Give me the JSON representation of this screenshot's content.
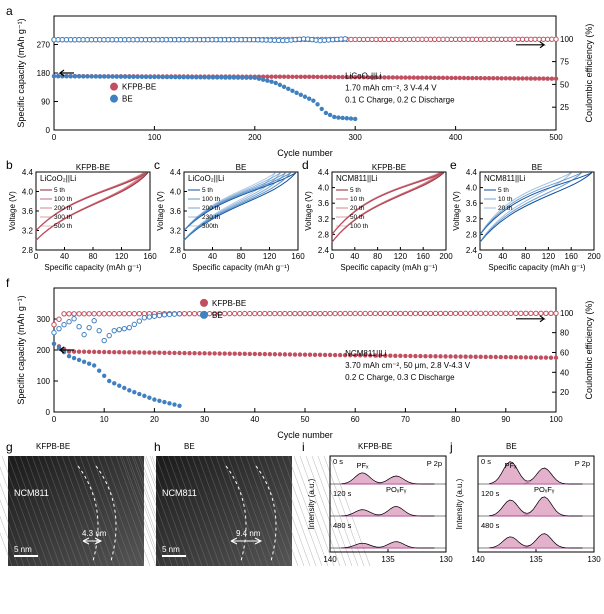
{
  "colors": {
    "kfpbSolid": "#c05060",
    "beSolid": "#4080c0",
    "kfpbOpen": "#c05060",
    "beOpen": "#4080c0",
    "grid": "#000000",
    "bg": "#ffffff",
    "xpsFill": "#d890b8"
  },
  "panelA": {
    "label": "a",
    "ylabelLeft": "Specific capacity (mAh g⁻¹)",
    "ylabelRight": "Coulombic efficiency (%)",
    "xlabel": "Cycle number",
    "xlim": [
      0,
      500
    ],
    "xtickStep": 100,
    "yLeftLim": [
      0,
      360
    ],
    "yLeftTicks": [
      0,
      90,
      180,
      270
    ],
    "yRightLim": [
      0,
      125
    ],
    "yRightTicks": [
      25,
      50,
      75,
      100
    ],
    "legend": [
      "KFPB-BE",
      "BE"
    ],
    "box": [
      "LiCoO₂||Li",
      "1.70 mAh cm⁻², 3 V-4.4 V",
      "0.1 C Charge, 0.2 C Discharge"
    ],
    "kfpbCap": [
      [
        0,
        170
      ],
      [
        250,
        168
      ],
      [
        500,
        162
      ]
    ],
    "beCap": [
      [
        0,
        170
      ],
      [
        200,
        165
      ],
      [
        220,
        150
      ],
      [
        240,
        120
      ],
      [
        260,
        90
      ],
      [
        270,
        55
      ],
      [
        280,
        40
      ],
      [
        300,
        35
      ]
    ],
    "kfpbCE": [
      [
        0,
        99
      ],
      [
        500,
        99.5
      ]
    ],
    "beCE": [
      [
        0,
        99
      ],
      [
        200,
        99
      ],
      [
        230,
        98
      ],
      [
        250,
        100
      ],
      [
        265,
        98
      ],
      [
        290,
        100
      ]
    ]
  },
  "panelBCDE": [
    {
      "label": "b",
      "title": "KFPB-BE",
      "sub": "LiCoO₂||Li",
      "color": "#c05060",
      "dark": "#902030",
      "xlim": [
        0,
        160
      ],
      "xlabel": "Specific capacity (mAh g⁻¹)",
      "ylabel": "Voltage (V)",
      "ylim": [
        2.8,
        4.4
      ],
      "yticks": [
        2.8,
        3.2,
        3.6,
        4.0,
        4.4
      ],
      "cycles": [
        "5 th",
        "100 th",
        "200 th",
        "300 th",
        "500 th"
      ]
    },
    {
      "label": "c",
      "title": "BE",
      "sub": "LiCoO₂||Li",
      "color": "#4080c0",
      "dark": "#1050a0",
      "xlim": [
        0,
        160
      ],
      "xlabel": "Specific capacity (mAh g⁻¹)",
      "ylabel": "Voltage (V)",
      "ylim": [
        2.8,
        4.4
      ],
      "yticks": [
        2.8,
        3.2,
        3.6,
        4.0,
        4.4
      ],
      "cycles": [
        "5 th",
        "100 th",
        "200 th",
        "230 th",
        "300th"
      ]
    },
    {
      "label": "d",
      "title": "KFPB-BE",
      "sub": "NCM811||Li",
      "color": "#c05060",
      "dark": "#902030",
      "xlim": [
        0,
        200
      ],
      "xlabel": "Specific capacity (mAh g⁻¹)",
      "ylabel": "Voltage (V)",
      "ylim": [
        2.4,
        4.4
      ],
      "yticks": [
        2.4,
        2.8,
        3.2,
        3.6,
        4.0,
        4.4
      ],
      "cycles": [
        "5 th",
        "10 th",
        "20 th",
        "50 th",
        "100 th"
      ]
    },
    {
      "label": "e",
      "title": "BE",
      "sub": "NCM811||Li",
      "color": "#4080c0",
      "dark": "#1050a0",
      "xlim": [
        0,
        200
      ],
      "xlabel": "Specific capacity (mAh g⁻¹)",
      "ylabel": "Voltage (V)",
      "ylim": [
        2.4,
        4.4
      ],
      "yticks": [
        2.4,
        2.8,
        3.2,
        3.6,
        4.0,
        4.4
      ],
      "cycles": [
        "5 th",
        "10 th",
        "20 th"
      ]
    }
  ],
  "panelF": {
    "label": "f",
    "ylabelLeft": "Specific capacity (mAh g⁻¹)",
    "ylabelRight": "Coulombic efficiency (%)",
    "xlabel": "Cycle number",
    "xlim": [
      0,
      100
    ],
    "xtickStep": 10,
    "yLeftLim": [
      0,
      400
    ],
    "yLeftTicks": [
      0,
      100,
      200,
      300
    ],
    "yRightLim": [
      0,
      125
    ],
    "yRightTicks": [
      20,
      40,
      60,
      80,
      100
    ],
    "legend": [
      "KFPB-BE",
      "BE"
    ],
    "box": [
      "NCM811||Li",
      "3.70 mAh cm⁻², 50 μm, 2.8 V-4.3 V",
      "0.2 C Charge, 0.3 C Discharge"
    ],
    "kfpbCap": [
      [
        0,
        220
      ],
      [
        3,
        195
      ],
      [
        50,
        185
      ],
      [
        100,
        175
      ]
    ],
    "beCap": [
      [
        0,
        220
      ],
      [
        3,
        180
      ],
      [
        8,
        150
      ],
      [
        11,
        100
      ],
      [
        15,
        70
      ],
      [
        20,
        40
      ],
      [
        25,
        20
      ]
    ],
    "kfpbCE": [
      [
        0,
        88
      ],
      [
        2,
        99
      ],
      [
        100,
        99.5
      ]
    ],
    "beCE": [
      [
        0,
        80
      ],
      [
        2,
        88
      ],
      [
        4,
        94
      ],
      [
        6,
        78
      ],
      [
        8,
        92
      ],
      [
        10,
        72
      ],
      [
        12,
        82
      ],
      [
        15,
        85
      ],
      [
        18,
        95
      ],
      [
        22,
        98
      ],
      [
        25,
        99
      ]
    ]
  },
  "panelG": {
    "label": "g",
    "title": "KFPB-BE",
    "mat": "NCM811",
    "scale": "5 nm",
    "thick": "4.3 nm"
  },
  "panelH": {
    "label": "h",
    "title": "BE",
    "mat": "NCM811",
    "scale": "5 nm",
    "thick": "9.4 nm"
  },
  "panelI": {
    "label": "i",
    "title": "KFPB-BE",
    "ylabel": "Intensity (a.u.)",
    "xlabel_ticks": [
      140,
      135,
      130
    ],
    "rows": [
      "0 s",
      "120 s",
      "480 s"
    ],
    "peaks": [
      "PFₓ",
      "POₓFᵧ"
    ],
    "spectrum": "P 2p"
  },
  "panelJ": {
    "label": "j",
    "title": "BE",
    "ylabel": "Intensity (a.u.)",
    "xlabel_ticks": [
      140,
      135,
      130
    ],
    "rows": [
      "0 s",
      "120 s",
      "480 s"
    ],
    "peaks": [
      "PFₓ",
      "POₓFᵧ"
    ],
    "spectrum": "P 2p"
  }
}
